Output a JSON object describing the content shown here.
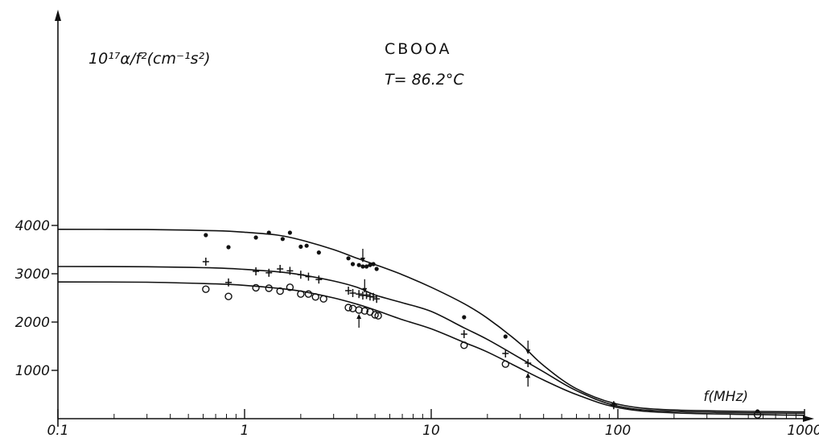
{
  "chart_data": {
    "type": "scatter",
    "title": "CBOOA",
    "subtitle": "T= 86.2°C",
    "ylabel": "10¹⁷α/f²(cm⁻¹s²)",
    "xlabel": "f(MHz)",
    "xscale": "log",
    "xlim": [
      0.1,
      1000
    ],
    "ylim": [
      0,
      7500
    ],
    "x_ticks": [
      0.1,
      1,
      10,
      100,
      1000
    ],
    "x_tick_labels": [
      "0.1",
      "1",
      "10",
      "100",
      "1000"
    ],
    "y_ticks": [
      1000,
      2000,
      3000,
      4000
    ],
    "y_tick_labels": [
      "1000",
      "2000",
      "3000",
      "4000"
    ],
    "grid": false,
    "series": [
      {
        "marker": "dot",
        "points": [
          [
            0.62,
            3800
          ],
          [
            0.82,
            3550
          ],
          [
            1.15,
            3750
          ],
          [
            1.35,
            3850
          ],
          [
            1.6,
            3720
          ],
          [
            1.75,
            3850
          ],
          [
            2.0,
            3560
          ],
          [
            2.15,
            3580
          ],
          [
            2.5,
            3440
          ],
          [
            3.6,
            3320
          ],
          [
            3.8,
            3200
          ],
          [
            4.1,
            3180
          ],
          [
            4.3,
            3150
          ],
          [
            4.5,
            3150
          ],
          [
            4.7,
            3180
          ],
          [
            4.9,
            3200
          ],
          [
            5.1,
            3100
          ],
          [
            15,
            2100
          ],
          [
            25,
            1700
          ],
          [
            95,
            300
          ],
          [
            560,
            150
          ]
        ],
        "curve": [
          [
            0.1,
            3920
          ],
          [
            0.3,
            3915
          ],
          [
            0.7,
            3890
          ],
          [
            1,
            3860
          ],
          [
            1.5,
            3800
          ],
          [
            2,
            3700
          ],
          [
            3,
            3500
          ],
          [
            4,
            3320
          ],
          [
            5,
            3190
          ],
          [
            7,
            2980
          ],
          [
            10,
            2720
          ],
          [
            15,
            2380
          ],
          [
            20,
            2080
          ],
          [
            30,
            1550
          ],
          [
            40,
            1100
          ],
          [
            60,
            620
          ],
          [
            100,
            300
          ],
          [
            200,
            180
          ],
          [
            1000,
            140
          ]
        ]
      },
      {
        "marker": "cross",
        "points": [
          [
            0.62,
            3250
          ],
          [
            0.82,
            2820
          ],
          [
            1.15,
            3050
          ],
          [
            1.35,
            3020
          ],
          [
            1.55,
            3100
          ],
          [
            1.75,
            3060
          ],
          [
            2.0,
            2980
          ],
          [
            2.2,
            2940
          ],
          [
            2.5,
            2880
          ],
          [
            3.6,
            2650
          ],
          [
            3.8,
            2600
          ],
          [
            4.1,
            2580
          ],
          [
            4.3,
            2550
          ],
          [
            4.5,
            2560
          ],
          [
            4.7,
            2530
          ],
          [
            4.9,
            2520
          ],
          [
            5.1,
            2480
          ],
          [
            15,
            1750
          ],
          [
            25,
            1350
          ],
          [
            33,
            1150
          ],
          [
            95,
            280
          ]
        ],
        "curve": [
          [
            0.1,
            3150
          ],
          [
            0.3,
            3145
          ],
          [
            0.7,
            3120
          ],
          [
            1,
            3090
          ],
          [
            1.5,
            3040
          ],
          [
            2,
            2980
          ],
          [
            3,
            2850
          ],
          [
            4,
            2720
          ],
          [
            5,
            2560
          ],
          [
            7,
            2400
          ],
          [
            10,
            2220
          ],
          [
            15,
            1880
          ],
          [
            20,
            1640
          ],
          [
            30,
            1250
          ],
          [
            40,
            970
          ],
          [
            60,
            580
          ],
          [
            100,
            260
          ],
          [
            200,
            150
          ],
          [
            1000,
            110
          ]
        ]
      },
      {
        "marker": "circle",
        "points": [
          [
            0.62,
            2680
          ],
          [
            0.82,
            2530
          ],
          [
            1.15,
            2710
          ],
          [
            1.35,
            2700
          ],
          [
            1.55,
            2640
          ],
          [
            1.75,
            2720
          ],
          [
            2.0,
            2580
          ],
          [
            2.2,
            2580
          ],
          [
            2.4,
            2520
          ],
          [
            2.65,
            2480
          ],
          [
            3.6,
            2300
          ],
          [
            3.8,
            2280
          ],
          [
            4.1,
            2250
          ],
          [
            4.4,
            2230
          ],
          [
            4.7,
            2210
          ],
          [
            5.0,
            2150
          ],
          [
            5.2,
            2130
          ],
          [
            15,
            1520
          ],
          [
            25,
            1130
          ],
          [
            560,
            80
          ]
        ],
        "curve": [
          [
            0.1,
            2830
          ],
          [
            0.3,
            2825
          ],
          [
            0.7,
            2790
          ],
          [
            1,
            2760
          ],
          [
            1.5,
            2700
          ],
          [
            2,
            2640
          ],
          [
            3,
            2500
          ],
          [
            4,
            2370
          ],
          [
            5,
            2250
          ],
          [
            7,
            2050
          ],
          [
            10,
            1860
          ],
          [
            15,
            1580
          ],
          [
            20,
            1380
          ],
          [
            30,
            1040
          ],
          [
            40,
            800
          ],
          [
            60,
            500
          ],
          [
            100,
            230
          ],
          [
            200,
            120
          ],
          [
            1000,
            70
          ]
        ]
      }
    ],
    "markers": [
      {
        "x": 4.3,
        "y": 3150,
        "dir": "down"
      },
      {
        "x": 4.4,
        "y": 2520,
        "dir": "down"
      },
      {
        "x": 4.1,
        "y": 2250,
        "dir": "up"
      },
      {
        "x": 33,
        "y": 1250,
        "dir": "down"
      },
      {
        "x": 33,
        "y": 1030,
        "dir": "up"
      }
    ]
  }
}
